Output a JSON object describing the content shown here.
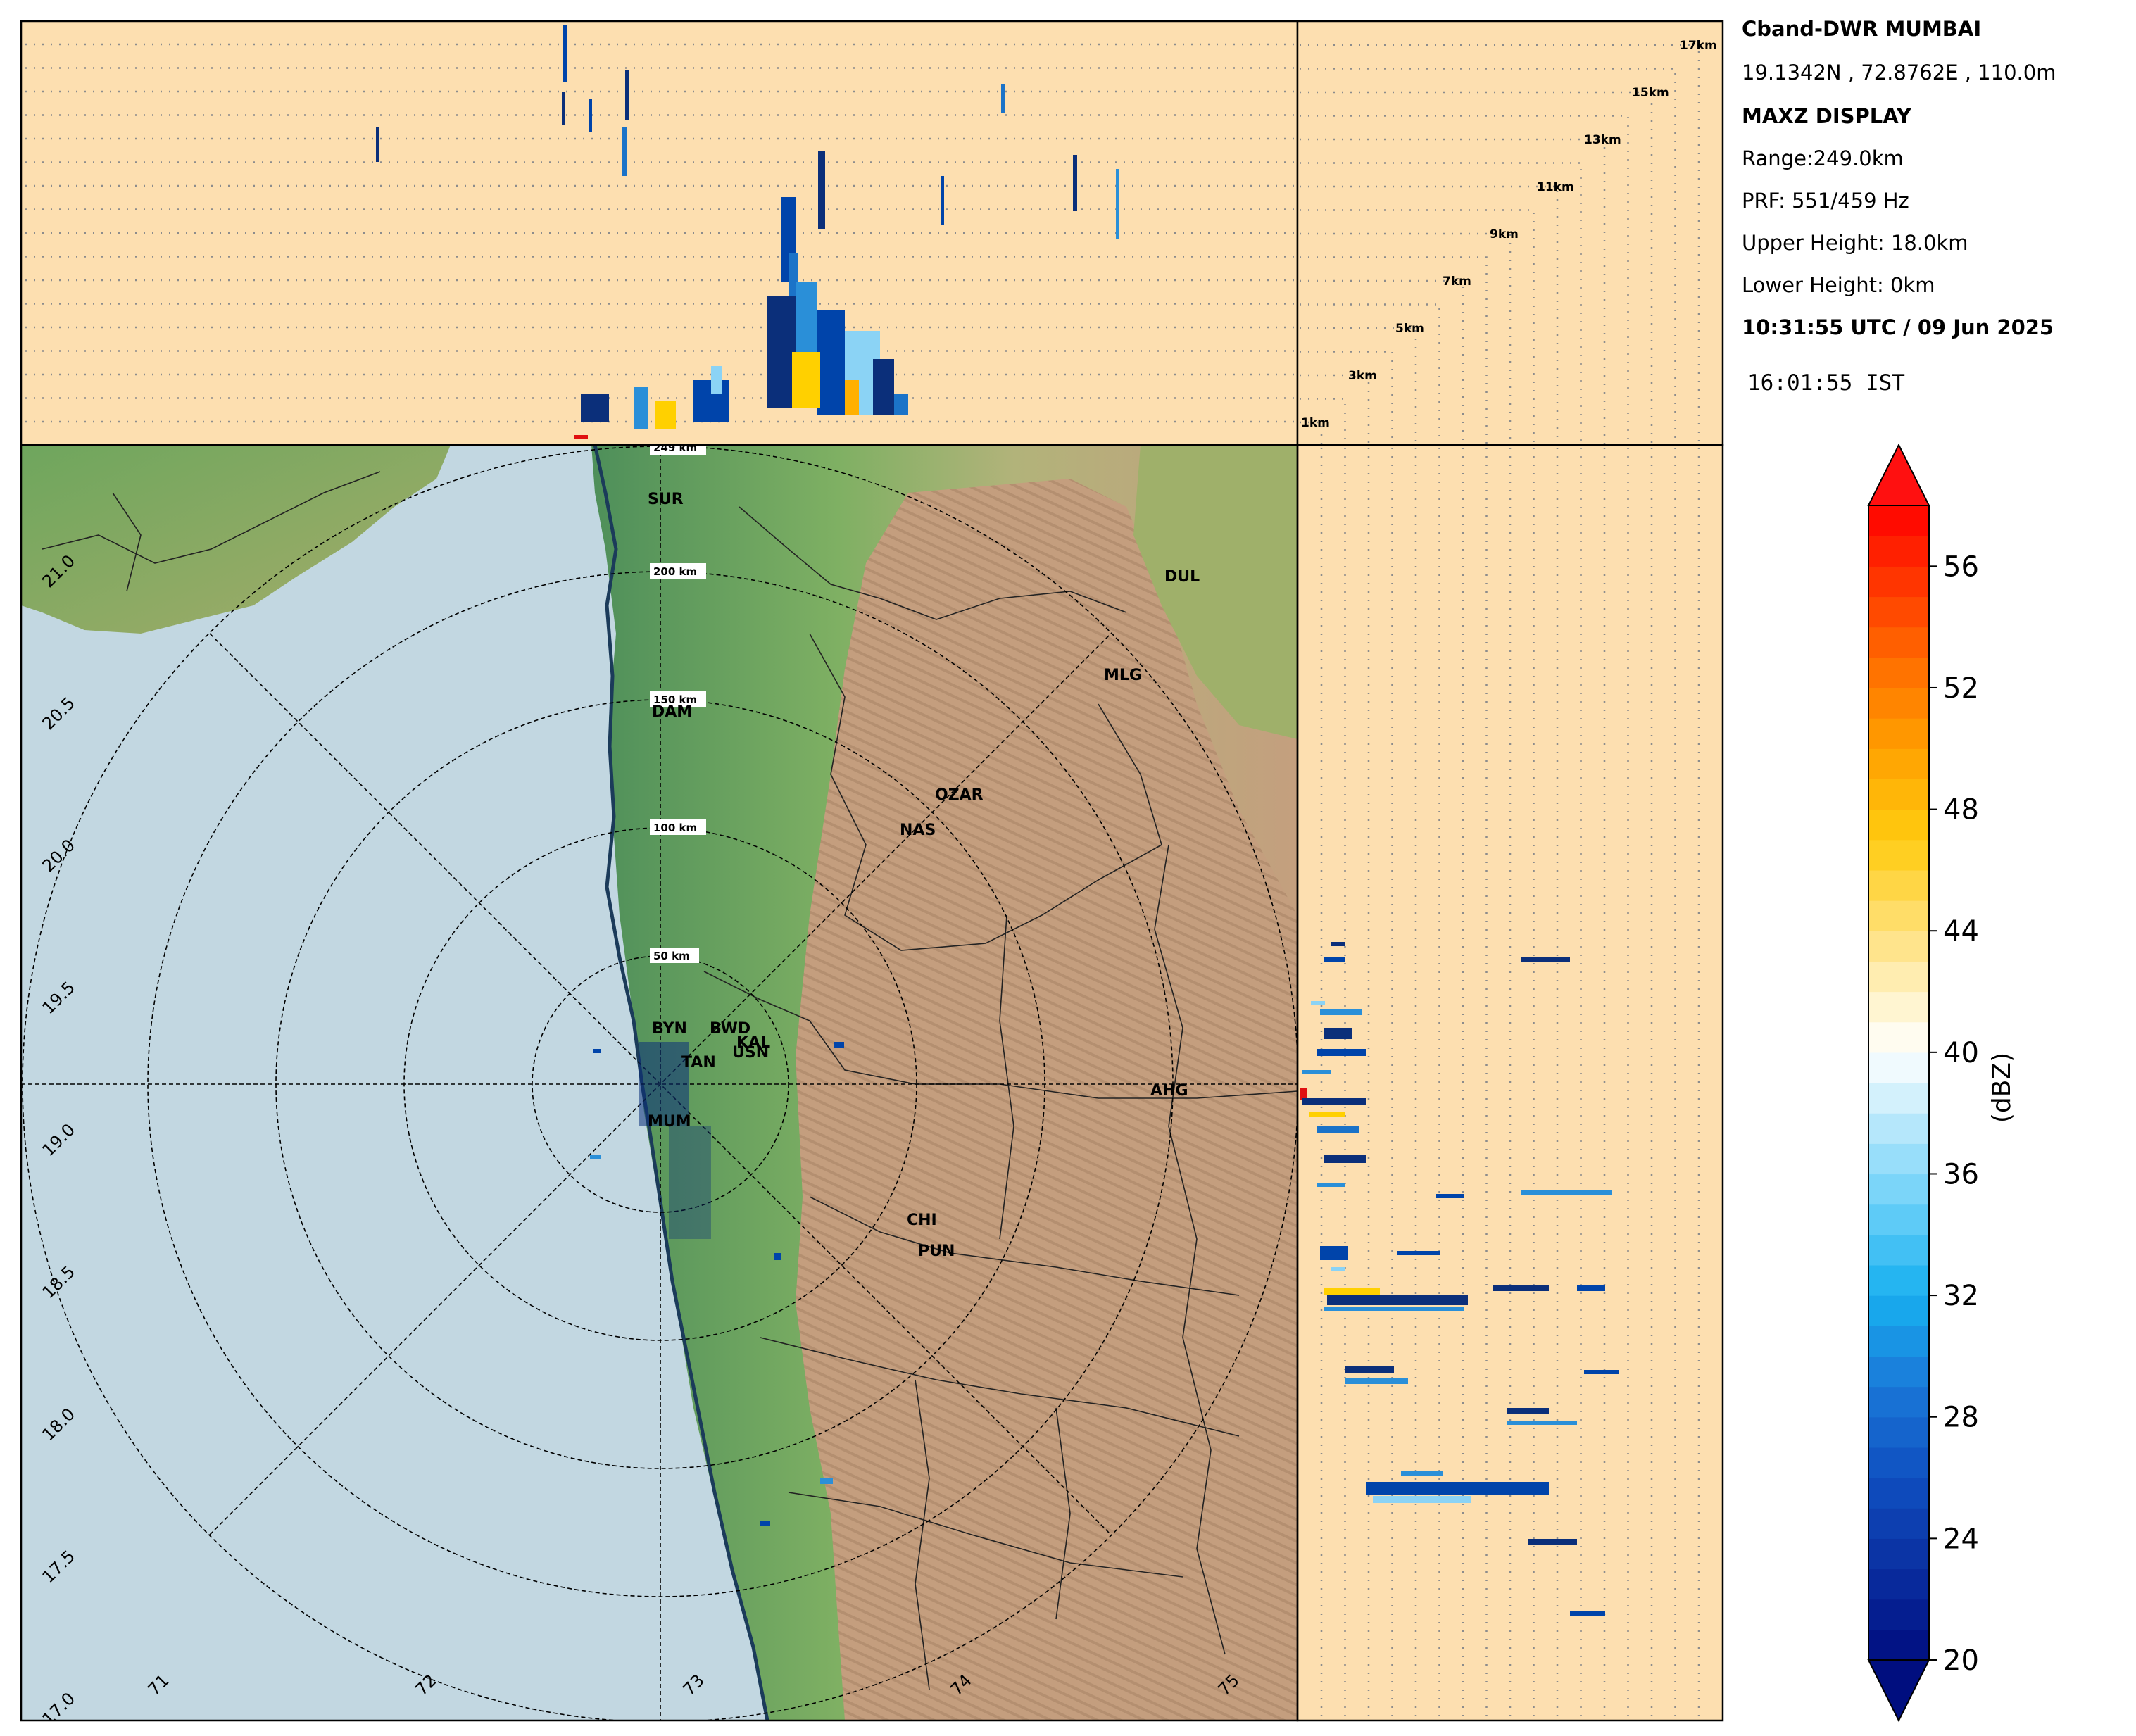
{
  "info": {
    "radar_name": "Cband-DWR MUMBAI",
    "location": "19.1342N , 72.8762E , 110.0m",
    "product": "MAXZ DISPLAY",
    "range": "Range:249.0km",
    "prf": "PRF: 551/459 Hz",
    "upper_height": "Upper Height: 18.0km",
    "lower_height": "Lower Height: 0km",
    "utc_time": "10:31:55 UTC / 09 Jun 2025",
    "ist_time": "16:01:55  IST"
  },
  "map": {
    "lat_ticks": [
      "21.0",
      "20.5",
      "20.0",
      "19.5",
      "19.0",
      "18.5",
      "18.0",
      "17.5",
      "17.0"
    ],
    "lon_ticks": [
      "71",
      "72",
      "73",
      "74",
      "75"
    ],
    "range_rings": [
      "249 km",
      "200 km",
      "150 km",
      "100 km",
      "50 km"
    ],
    "cities": [
      {
        "name": "SUR"
      },
      {
        "name": "DUL"
      },
      {
        "name": "MLG"
      },
      {
        "name": "DAM"
      },
      {
        "name": "OZAR"
      },
      {
        "name": "NAS"
      },
      {
        "name": "BYN"
      },
      {
        "name": "BWD"
      },
      {
        "name": "KAL"
      },
      {
        "name": "USN"
      },
      {
        "name": "TAN"
      },
      {
        "name": "AHG"
      },
      {
        "name": "MUM"
      },
      {
        "name": "CHI"
      },
      {
        "name": "PUN"
      }
    ]
  },
  "height_panel": {
    "labels": [
      "17km",
      "15km",
      "13km",
      "11km",
      "9km",
      "7km",
      "5km",
      "3km",
      "1km"
    ]
  },
  "colorbar": {
    "label": "(dBZ)",
    "min": 20,
    "max": 58,
    "ticks": [
      "20",
      "24",
      "28",
      "32",
      "36",
      "40",
      "44",
      "48",
      "52",
      "56"
    ]
  },
  "colors": {
    "sea": "#c2d7e1",
    "lowland": "#5f9f5a",
    "upland": "#c09a78",
    "panel_bg": "#fddfb0"
  }
}
